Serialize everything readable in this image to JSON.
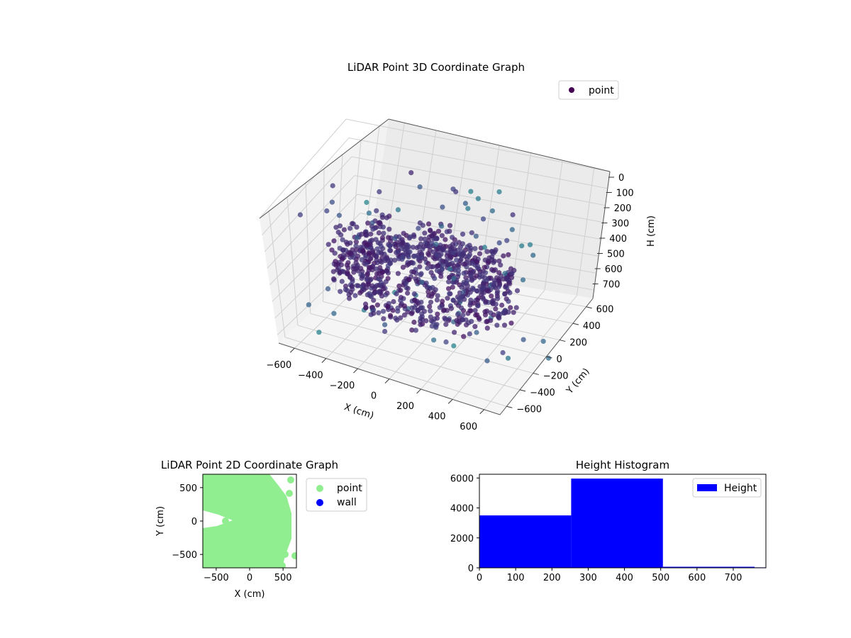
{
  "chart_data": [
    {
      "type": "scatter",
      "projection": "3d",
      "title": "LiDAR Point 3D Coordinate Graph",
      "xlabel": "X (cm)",
      "ylabel": "Y (cm)",
      "zlabel": "H (cm)",
      "x_ticks": [
        "−600",
        "−400",
        "−200",
        "0",
        "200",
        "400",
        "600"
      ],
      "y_ticks": [
        "−600",
        "−400",
        "−200",
        "0",
        "200",
        "400",
        "600"
      ],
      "z_ticks": [
        "0",
        "100",
        "200",
        "300",
        "400",
        "500",
        "600",
        "700"
      ],
      "xlim": [
        -700,
        700
      ],
      "ylim": [
        -700,
        700
      ],
      "zlim": [
        0,
        750
      ],
      "z_axis_inverted": true,
      "grid": true,
      "legend": {
        "placement": "upper-right",
        "entries": [
          {
            "label": "point",
            "color": "#440154"
          }
        ]
      },
      "colormap": "viridis",
      "series": [
        {
          "name": "point",
          "description_of_shape": "dense ring of points at radius ~300-600 cm, heights ~250-500 cm, sparse outliers",
          "sample_points": [
            {
              "x": -500,
              "y": 200,
              "h": 300
            },
            {
              "x": -300,
              "y": -400,
              "h": 350
            },
            {
              "x": 200,
              "y": -500,
              "h": 400
            },
            {
              "x": 500,
              "y": -100,
              "h": 300
            },
            {
              "x": 400,
              "y": 400,
              "h": 350
            },
            {
              "x": -100,
              "y": 550,
              "h": 300
            },
            {
              "x": 0,
              "y": 0,
              "h": 280
            },
            {
              "x": -650,
              "y": -500,
              "h": 650
            }
          ]
        }
      ]
    },
    {
      "type": "scatter",
      "title": "LiDAR Point 2D Coordinate Graph",
      "xlabel": "X (cm)",
      "ylabel": "Y (cm)",
      "x_ticks": [
        "−500",
        "0",
        "500"
      ],
      "y_ticks": [
        "−500",
        "0",
        "500"
      ],
      "xlim": [
        -700,
        700
      ],
      "ylim": [
        -700,
        700
      ],
      "legend": {
        "placement": "outside-right",
        "entries": [
          {
            "label": "point",
            "color": "#90ee90"
          },
          {
            "label": "wall",
            "color": "#0000ff"
          }
        ]
      },
      "series": [
        {
          "name": "point",
          "color": "#90ee90",
          "coverage": "fills most of the area, with a white gap at left center"
        },
        {
          "name": "wall",
          "color": "#0000ff",
          "values": []
        }
      ]
    },
    {
      "type": "bar",
      "subtype": "histogram",
      "title": "Height Histogram",
      "xlabel": "",
      "ylabel": "",
      "x_ticks": [
        "0",
        "100",
        "200",
        "300",
        "400",
        "500",
        "600",
        "700"
      ],
      "y_ticks": [
        "0",
        "2000",
        "4000",
        "6000"
      ],
      "xlim": [
        0,
        790
      ],
      "ylim": [
        0,
        6250
      ],
      "color": "#0000ff",
      "legend": {
        "placement": "upper-right",
        "entries": [
          {
            "label": "Height",
            "color": "#0000ff"
          }
        ]
      },
      "bins": [
        {
          "start": 0,
          "end": 253,
          "count": 3500
        },
        {
          "start": 253,
          "end": 506,
          "count": 5960
        },
        {
          "start": 506,
          "end": 759,
          "count": 70
        },
        {
          "start": 759,
          "end": 790,
          "count": 30
        }
      ]
    }
  ]
}
